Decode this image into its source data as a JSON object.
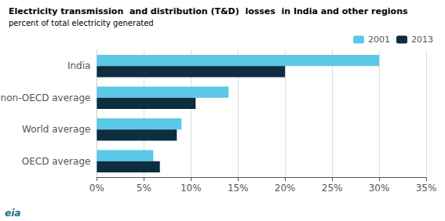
{
  "chart_data": {
    "type": "bar",
    "orientation": "horizontal",
    "title": "Electricity transmission  and distribution (T&D)  losses  in India and other regions",
    "subtitle": "percent of total electricity generated",
    "categories": [
      "India",
      "non-OECD average",
      "World average",
      "OECD average"
    ],
    "series": [
      {
        "name": "2001",
        "color": "#5bc8e8",
        "values": [
          30,
          14,
          9,
          6
        ]
      },
      {
        "name": "2013",
        "color": "#0d2d40",
        "values": [
          20,
          10.5,
          8.5,
          6.7
        ]
      }
    ],
    "xlim": [
      0,
      35
    ],
    "xticks": [
      {
        "value": 0,
        "label": "0%"
      },
      {
        "value": 5,
        "label": "5%"
      },
      {
        "value": 10,
        "label": "10%"
      },
      {
        "value": 15,
        "label": "15%"
      },
      {
        "value": 20,
        "label": "20%"
      },
      {
        "value": 25,
        "label": "25%"
      },
      {
        "value": 30,
        "label": "30%"
      },
      {
        "value": 35,
        "label": "35%"
      }
    ],
    "grid": true,
    "legend": "upper right",
    "annotations": [
      "eia"
    ]
  }
}
